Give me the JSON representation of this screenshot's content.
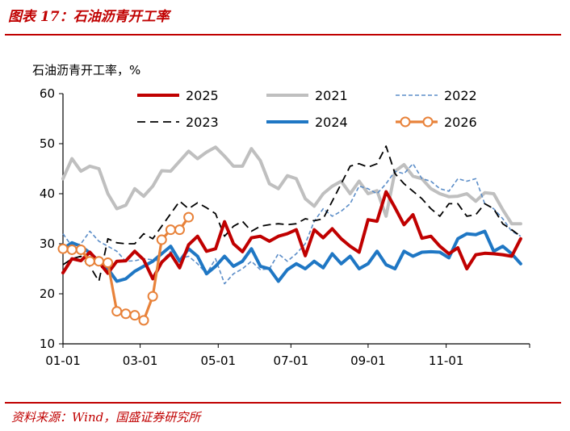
{
  "figure_title": "图表 17：石油沥青开工率",
  "source_note": "资料来源：Wind，国盛证券研究所",
  "chart_data": {
    "type": "line",
    "ylabel": "石油沥青开工率，%",
    "xlabel": "",
    "ylim": [
      10,
      60
    ],
    "yticks": [
      10,
      20,
      30,
      40,
      50,
      60
    ],
    "xlim": [
      1,
      53
    ],
    "x_unit": "week of year",
    "x_tick_positions": [
      1,
      9.6,
      18.3,
      26.4,
      35,
      43.7
    ],
    "x_tick_labels": [
      "01-01",
      "03-01",
      "05-01",
      "07-01",
      "09-01",
      "11-01"
    ],
    "grid": false,
    "legend_position": "top",
    "series": [
      {
        "name": "2025",
        "color": "#c00000",
        "style": "solid",
        "width": 4,
        "values": [
          24.2,
          27,
          26.6,
          28.3,
          26.3,
          24.1,
          26.5,
          26.6,
          28.5,
          26.8,
          23,
          26.3,
          28,
          25.2,
          29.8,
          31.5,
          28.5,
          29,
          34.4,
          30,
          28.4,
          31.2,
          31.5,
          30.5,
          31.5,
          32,
          32.8,
          27.6,
          32.8,
          31.2,
          33,
          31,
          29.5,
          28.3,
          34.8,
          34.5,
          40.4,
          37.2,
          33.8,
          35.8,
          31.1,
          31.5,
          29.5,
          28,
          29.2,
          25,
          27.8,
          28.1,
          28,
          27.8,
          27.5,
          31
        ]
      },
      {
        "name": "2021",
        "color": "#bfbfbf",
        "style": "solid",
        "width": 4,
        "values": [
          43,
          47,
          44.5,
          45.5,
          45,
          40,
          37,
          37.7,
          41,
          39.5,
          41.5,
          44.6,
          44.5,
          46.5,
          48.5,
          47,
          48.3,
          49.3,
          47.5,
          45.5,
          45.5,
          49,
          46.6,
          42,
          41,
          43.6,
          43,
          39,
          37.5,
          40,
          41.5,
          42.5,
          40,
          42.5,
          40,
          40.6,
          35.5,
          44.5,
          45.8,
          43.5,
          43,
          41,
          40,
          39.4,
          39.5,
          40,
          38.5,
          40.2,
          40,
          36.8,
          34,
          34
        ]
      },
      {
        "name": "2022",
        "color": "#5b8dc8",
        "style": "dash",
        "width": 1.6,
        "values": [
          32,
          29.5,
          30,
          32.5,
          30.5,
          29.5,
          28.5,
          26.5,
          26.6,
          27,
          26.8,
          26.5,
          28.5,
          27,
          27.5,
          26,
          24,
          27,
          22,
          24,
          25,
          26.5,
          24.8,
          25,
          28,
          26.5,
          28,
          30,
          34.5,
          37,
          35.5,
          36.5,
          38,
          41.5,
          41,
          40,
          42,
          44.5,
          44,
          46,
          43,
          42.5,
          41,
          40.5,
          43,
          42.5,
          43,
          38,
          37,
          35,
          32.5,
          31.5
        ]
      },
      {
        "name": "2023",
        "color": "#000000",
        "style": "dash",
        "width": 1.8,
        "values": [
          25.8,
          27,
          27.5,
          25.5,
          22.5,
          31,
          30.2,
          30,
          30,
          32,
          31,
          33.5,
          36,
          38.5,
          37,
          38.2,
          37.2,
          36,
          31.5,
          33.5,
          34.5,
          32.5,
          33.5,
          33.8,
          34,
          33.8,
          34,
          35,
          34.6,
          35,
          38.5,
          42,
          45.5,
          46,
          45.3,
          46,
          49.5,
          44,
          42,
          40.5,
          39,
          37,
          35.5,
          38,
          38,
          35.5,
          35.8,
          38,
          37,
          34,
          32.8,
          31.5
        ]
      },
      {
        "name": "2024",
        "color": "#1f77c4",
        "style": "solid",
        "width": 4,
        "values": [
          29,
          30.2,
          29.5,
          28.2,
          26.5,
          25,
          22.5,
          23,
          24.5,
          25.5,
          26.5,
          28,
          29.5,
          26.5,
          29,
          27.5,
          24,
          25.5,
          27.5,
          25.5,
          26.5,
          29,
          25.5,
          25,
          22.5,
          24.8,
          26,
          25,
          26.5,
          25.2,
          28,
          26,
          27.5,
          25,
          26,
          28.5,
          25.8,
          25,
          28.5,
          27.5,
          28.3,
          28.4,
          28.3,
          27.2,
          31,
          32,
          31.8,
          32.5,
          28.5,
          29.5,
          28,
          26
        ]
      },
      {
        "name": "2026",
        "color": "#e8823a",
        "style": "solid-marker",
        "width": 3.2,
        "values": [
          29,
          28.8,
          28.8,
          26.5,
          26.5,
          26.2,
          16.5,
          16,
          15.7,
          14.7,
          19.5,
          30.8,
          32.8,
          32.8,
          35.3
        ]
      }
    ]
  }
}
